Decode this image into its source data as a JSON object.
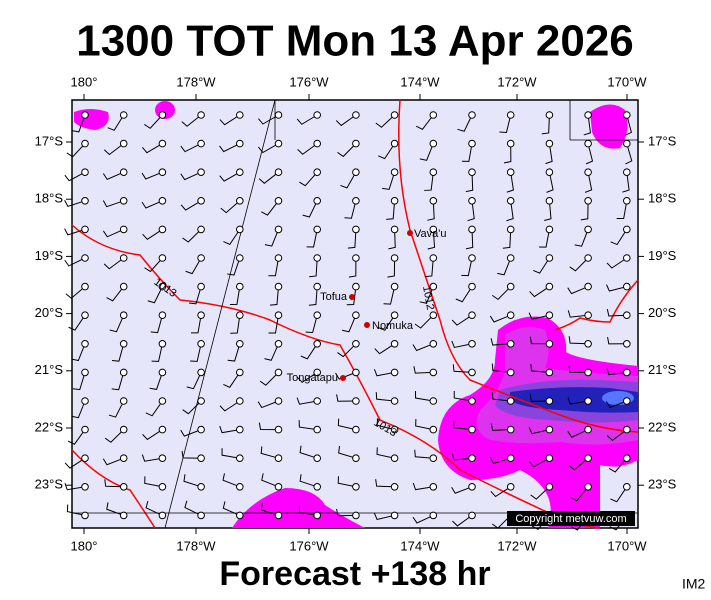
{
  "title": "1300 TOT Mon 13 Apr 2026",
  "footer": "Forecast +138 hr",
  "corner_label": "IM2",
  "map": {
    "lon_labels": [
      "180°",
      "178°W",
      "176°W",
      "174°W",
      "172°W",
      "170°W"
    ],
    "lat_labels": [
      "17°S",
      "18°S",
      "19°S",
      "20°S",
      "21°S",
      "22°S",
      "23°S"
    ],
    "places": [
      "Vava'u",
      "Tofua",
      "Nomuka",
      "Tongatapu"
    ],
    "isobar_labels": [
      "1013",
      "1012",
      "1013"
    ],
    "copyright": "Copyright metvuw.com"
  }
}
